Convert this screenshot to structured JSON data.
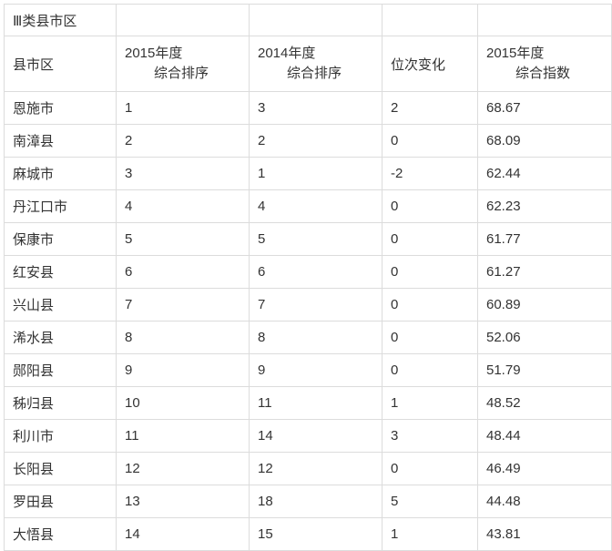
{
  "table": {
    "category": "Ⅲ类县市区",
    "headers": {
      "county": "县市区",
      "rank2015": [
        "2015年度",
        "综合排序"
      ],
      "rank2014": [
        "2014年度",
        "综合排序"
      ],
      "change": "位次变化",
      "index2015": [
        "2015年度",
        "综合指数"
      ]
    },
    "rows": [
      [
        "恩施市",
        "1",
        "3",
        "2",
        "68.67"
      ],
      [
        "南漳县",
        "2",
        "2",
        "0",
        "68.09"
      ],
      [
        "麻城市",
        "3",
        "1",
        "-2",
        "62.44"
      ],
      [
        "丹江口市",
        "4",
        "4",
        "0",
        "62.23"
      ],
      [
        "保康市",
        "5",
        "5",
        "0",
        "61.77"
      ],
      [
        "红安县",
        "6",
        "6",
        "0",
        "61.27"
      ],
      [
        "兴山县",
        "7",
        "7",
        "0",
        "60.89"
      ],
      [
        "浠水县",
        "8",
        "8",
        "0",
        "52.06"
      ],
      [
        "郧阳县",
        "9",
        "9",
        "0",
        "51.79"
      ],
      [
        "秭归县",
        "10",
        "11",
        "1",
        "48.52"
      ],
      [
        "利川市",
        "11",
        "14",
        "3",
        "48.44"
      ],
      [
        "长阳县",
        "12",
        "12",
        "0",
        "46.49"
      ],
      [
        "罗田县",
        "13",
        "18",
        "5",
        "44.48"
      ],
      [
        "大悟县",
        "14",
        "15",
        "1",
        "43.81"
      ]
    ]
  }
}
